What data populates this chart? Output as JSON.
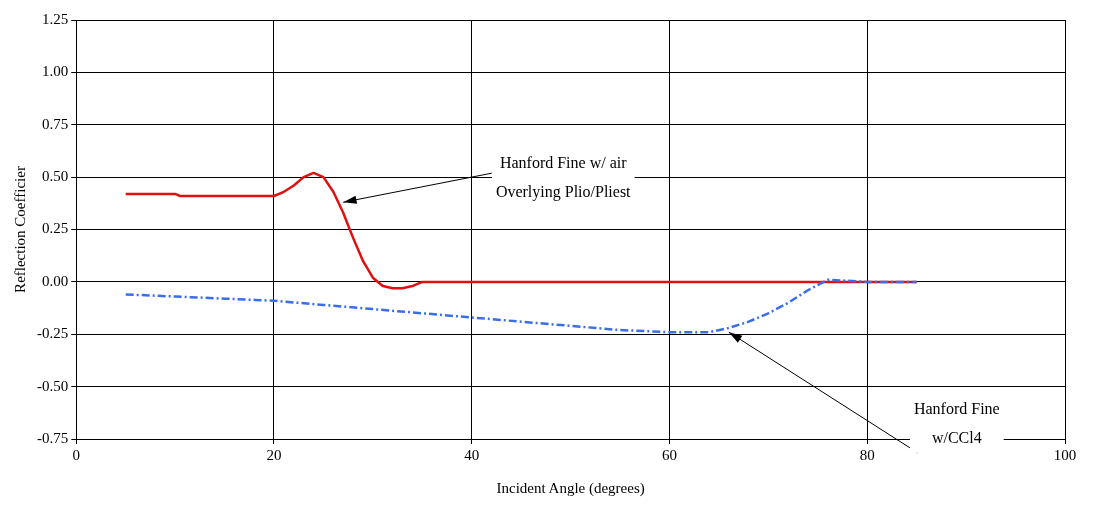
{
  "chart_data": {
    "type": "line",
    "xlabel": "Incident Angle (degrees)",
    "ylabel": "Reflection Coefficier",
    "xlim": [
      0,
      100
    ],
    "xticks": [
      0,
      20,
      40,
      60,
      80,
      100
    ],
    "ylim": [
      -0.75,
      1.25
    ],
    "yticks": [
      {
        "value": -0.75,
        "label": "-0.75"
      },
      {
        "value": -0.5,
        "label": "-0.50"
      },
      {
        "value": -0.25,
        "label": "-0.25"
      },
      {
        "value": 0,
        "label": "0.00"
      },
      {
        "value": 0.25,
        "label": "0.25"
      },
      {
        "value": 0.5,
        "label": "0.50"
      },
      {
        "value": 0.75,
        "label": "0.75"
      },
      {
        "value": 1,
        "label": "1.00"
      },
      {
        "value": 1.25,
        "label": "1.25"
      }
    ],
    "grid": true,
    "legend": false,
    "marker": "none",
    "series": [
      {
        "color": "#e01010",
        "line_style": "solid",
        "x": [
          5,
          10,
          10.5,
          20,
          21,
          22,
          23,
          24,
          25,
          26,
          27,
          28,
          29,
          30,
          31,
          32,
          33,
          34,
          35,
          50,
          70,
          85
        ],
        "values": [
          0.42,
          0.42,
          0.41,
          0.41,
          0.43,
          0.46,
          0.5,
          0.52,
          0.5,
          0.43,
          0.33,
          0.21,
          0.1,
          0.02,
          -0.02,
          -0.03,
          -0.03,
          -0.02,
          0,
          0,
          0,
          0
        ]
      },
      {
        "color": "#3a6ee8",
        "line_style": "dashed",
        "x": [
          5,
          10,
          15,
          20,
          25,
          30,
          35,
          40,
          45,
          50,
          55,
          60,
          64,
          66,
          68,
          70,
          72,
          74,
          76,
          80,
          85
        ],
        "values": [
          -0.06,
          -0.07,
          -0.08,
          -0.09,
          -0.11,
          -0.13,
          -0.15,
          -0.17,
          -0.19,
          -0.21,
          -0.23,
          -0.24,
          -0.24,
          -0.22,
          -0.19,
          -0.15,
          -0.1,
          -0.04,
          0.01,
          0,
          0
        ]
      }
    ],
    "annotations": [
      {
        "text": "Hanford Fine w/ air\nOverlying Plio/Pliest",
        "x": 27,
        "y": 0.38
      },
      {
        "text": "Hanford Fine\nw/CCl4",
        "x": 66,
        "y": -0.24
      }
    ]
  }
}
